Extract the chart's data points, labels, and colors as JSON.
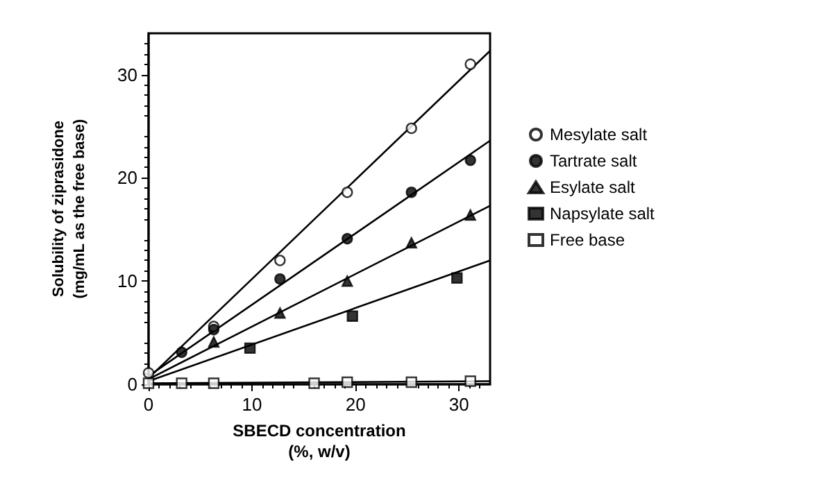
{
  "chart_data": {
    "type": "scatter",
    "xlabel": "SBECD concentration\n(%, w/v)",
    "ylabel": "Solubility of ziprasidone\n(mg/mL as the free base)",
    "xlim": [
      0,
      33
    ],
    "ylim": [
      0,
      34
    ],
    "xticks": [
      0,
      10,
      20,
      30
    ],
    "yticks": [
      0,
      10,
      20,
      30
    ],
    "grid": false,
    "legend": "right",
    "series": [
      {
        "name": "Mesylate salt",
        "color": "#ffffff",
        "marker": "circle",
        "x": [
          0,
          6.3,
          12.7,
          19.2,
          25.4,
          31.1
        ],
        "values": [
          1.1,
          5.6,
          12,
          18.6,
          24.8,
          31
        ]
      },
      {
        "name": "Tartrate salt",
        "color": "#000000",
        "marker": "circle",
        "x": [
          3.2,
          6.3,
          12.7,
          19.2,
          25.4,
          31.1
        ],
        "values": [
          3.1,
          5.3,
          10.2,
          14.1,
          18.6,
          21.7
        ]
      },
      {
        "name": "Esylate salt",
        "color": "#000000",
        "marker": "triangle",
        "x": [
          6.3,
          12.7,
          19.2,
          25.4,
          31.1
        ],
        "values": [
          4.1,
          6.9,
          10,
          13.7,
          16.4
        ]
      },
      {
        "name": "Napsylate salt",
        "color": "#000000",
        "marker": "square",
        "x": [
          9.8,
          19.7,
          29.8
        ],
        "values": [
          3.5,
          6.6,
          10.3
        ]
      },
      {
        "name": "Free base",
        "color": "#ffffff",
        "marker": "square",
        "x": [
          0,
          3.2,
          6.3,
          16,
          19.2,
          25.4,
          31.1
        ],
        "values": [
          0.1,
          0.1,
          0.1,
          0.1,
          0.2,
          0.2,
          0.3
        ]
      },
      {
        "type": "line",
        "color": "#000000",
        "marker": "none",
        "x": [
          0,
          33
        ],
        "values": [
          0.6,
          32.3
        ]
      },
      {
        "type": "line",
        "color": "#000000",
        "marker": "none",
        "x": [
          0,
          33
        ],
        "values": [
          0.8,
          23.6
        ]
      },
      {
        "type": "line",
        "color": "#000000",
        "marker": "none",
        "x": [
          0,
          33
        ],
        "values": [
          0.5,
          17.3
        ]
      },
      {
        "type": "line",
        "color": "#000000",
        "marker": "none",
        "x": [
          0,
          33
        ],
        "values": [
          0.3,
          12
        ]
      },
      {
        "type": "line",
        "color": "#000000",
        "marker": "none",
        "x": [
          0,
          33
        ],
        "values": [
          0.1,
          0.3
        ]
      }
    ]
  }
}
